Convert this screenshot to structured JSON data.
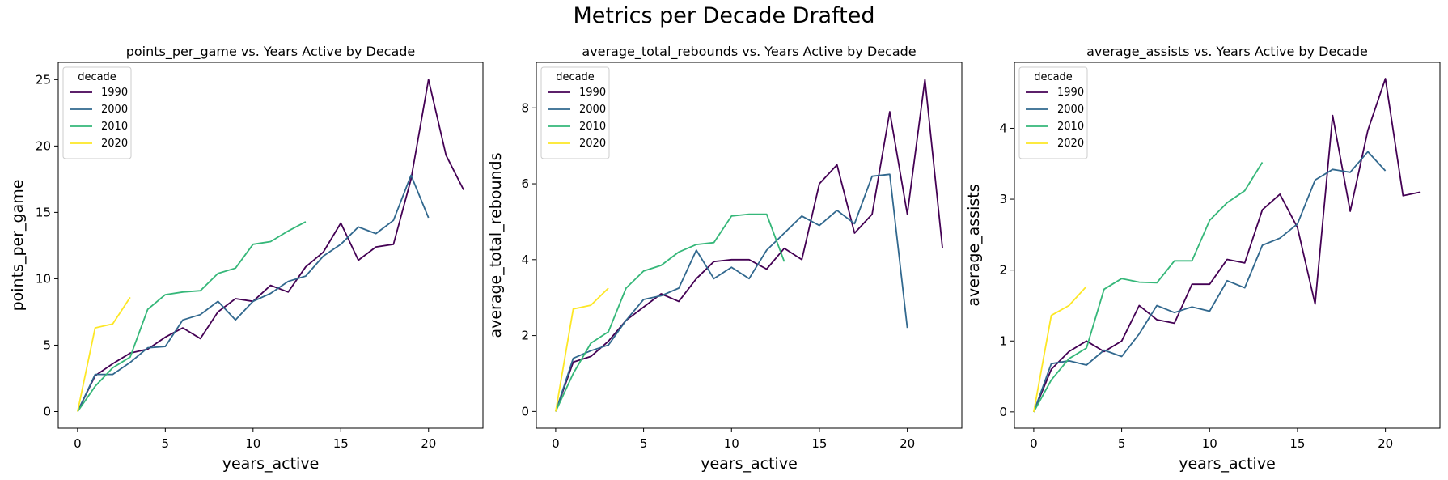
{
  "suptitle": "Metrics per Decade Drafted",
  "palette": {
    "1990": "#440154",
    "2000": "#31688e",
    "2010": "#35b779",
    "2020": "#fde725"
  },
  "chart_data": [
    {
      "type": "line",
      "title": "points_per_game vs. Years Active by Decade",
      "xlabel": "years_active",
      "ylabel": "points_per_game",
      "xlim": [
        -1.1,
        23.1
      ],
      "ylim": [
        -1.25,
        26.3
      ],
      "xticks": [
        0,
        5,
        10,
        15,
        20
      ],
      "yticks": [
        0,
        5,
        10,
        15,
        20,
        25
      ],
      "legend": {
        "title": "decade",
        "position": "top-left"
      },
      "series": [
        {
          "name": "1990",
          "x": [
            0,
            1,
            2,
            3,
            4,
            5,
            6,
            7,
            8,
            9,
            10,
            11,
            12,
            13,
            14,
            15,
            16,
            17,
            18,
            19,
            20,
            21,
            22
          ],
          "y": [
            0,
            2.7,
            3.6,
            4.4,
            4.7,
            5.6,
            6.3,
            5.5,
            7.5,
            8.5,
            8.3,
            9.5,
            9.0,
            10.9,
            12.0,
            14.2,
            11.4,
            12.4,
            12.6,
            17.5,
            25.0,
            19.3,
            16.7
          ]
        },
        {
          "name": "2000",
          "x": [
            0,
            1,
            2,
            3,
            4,
            5,
            6,
            7,
            8,
            9,
            10,
            11,
            12,
            13,
            14,
            15,
            16,
            17,
            18,
            19,
            20
          ],
          "y": [
            0,
            2.8,
            2.8,
            3.7,
            4.8,
            4.9,
            6.9,
            7.3,
            8.3,
            6.9,
            8.3,
            8.9,
            9.8,
            10.2,
            11.7,
            12.6,
            13.9,
            13.4,
            14.4,
            17.8,
            14.6
          ]
        },
        {
          "name": "2010",
          "x": [
            0,
            1,
            2,
            3,
            4,
            5,
            6,
            7,
            8,
            9,
            10,
            11,
            12,
            13
          ],
          "y": [
            0,
            1.9,
            3.3,
            4.1,
            7.7,
            8.8,
            9.0,
            9.1,
            10.4,
            10.8,
            12.6,
            12.8,
            13.6,
            14.3
          ]
        },
        {
          "name": "2020",
          "x": [
            0,
            1,
            2,
            3
          ],
          "y": [
            0,
            6.3,
            6.6,
            8.6
          ]
        }
      ]
    },
    {
      "type": "line",
      "title": "average_total_rebounds vs. Years Active by Decade",
      "xlabel": "years_active",
      "ylabel": "average_total_rebounds",
      "xlim": [
        -1.1,
        23.1
      ],
      "ylim": [
        -0.44,
        9.2
      ],
      "xticks": [
        0,
        5,
        10,
        15,
        20
      ],
      "yticks": [
        0,
        2,
        4,
        6,
        8
      ],
      "legend": {
        "title": "decade",
        "position": "top-left"
      },
      "series": [
        {
          "name": "1990",
          "x": [
            0,
            1,
            2,
            3,
            4,
            5,
            6,
            7,
            8,
            9,
            10,
            11,
            12,
            13,
            14,
            15,
            16,
            17,
            18,
            19,
            20,
            21,
            22
          ],
          "y": [
            0,
            1.3,
            1.45,
            1.85,
            2.4,
            2.75,
            3.1,
            2.9,
            3.5,
            3.95,
            4.0,
            4.0,
            3.75,
            4.3,
            4.0,
            6.0,
            6.5,
            4.7,
            5.2,
            7.9,
            5.2,
            8.75,
            4.3
          ]
        },
        {
          "name": "2000",
          "x": [
            0,
            1,
            2,
            3,
            4,
            5,
            6,
            7,
            8,
            9,
            10,
            11,
            12,
            13,
            14,
            15,
            16,
            17,
            18,
            19,
            20
          ],
          "y": [
            0,
            1.4,
            1.6,
            1.75,
            2.4,
            2.95,
            3.05,
            3.25,
            4.25,
            3.5,
            3.8,
            3.5,
            4.25,
            4.7,
            5.15,
            4.9,
            5.3,
            4.95,
            6.2,
            6.25,
            2.2
          ]
        },
        {
          "name": "2010",
          "x": [
            0,
            1,
            2,
            3,
            4,
            5,
            6,
            7,
            8,
            9,
            10,
            11,
            12,
            13
          ],
          "y": [
            0,
            1.0,
            1.8,
            2.1,
            3.25,
            3.7,
            3.85,
            4.2,
            4.4,
            4.45,
            5.15,
            5.2,
            5.2,
            3.95
          ]
        },
        {
          "name": "2020",
          "x": [
            0,
            1,
            2,
            3
          ],
          "y": [
            0,
            2.7,
            2.8,
            3.25
          ]
        }
      ]
    },
    {
      "type": "line",
      "title": "average_assists vs. Years Active by Decade",
      "xlabel": "years_active",
      "ylabel": "average_assists",
      "xlim": [
        -1.1,
        23.1
      ],
      "ylim": [
        -0.23,
        4.93
      ],
      "xticks": [
        0,
        5,
        10,
        15,
        20
      ],
      "yticks": [
        0,
        1,
        2,
        3,
        4
      ],
      "legend": {
        "title": "decade",
        "position": "top-left"
      },
      "series": [
        {
          "name": "1990",
          "x": [
            0,
            1,
            2,
            3,
            4,
            5,
            6,
            7,
            8,
            9,
            10,
            11,
            12,
            13,
            14,
            15,
            16,
            17,
            18,
            19,
            20,
            21,
            22
          ],
          "y": [
            0,
            0.6,
            0.85,
            1.0,
            0.85,
            1.0,
            1.5,
            1.3,
            1.25,
            1.8,
            1.8,
            2.15,
            2.1,
            2.85,
            3.07,
            2.6,
            1.52,
            4.18,
            2.83,
            3.97,
            4.7,
            3.05,
            3.1
          ]
        },
        {
          "name": "2000",
          "x": [
            0,
            1,
            2,
            3,
            4,
            5,
            6,
            7,
            8,
            9,
            10,
            11,
            12,
            13,
            14,
            15,
            16,
            17,
            18,
            19,
            20
          ],
          "y": [
            0,
            0.68,
            0.72,
            0.66,
            0.87,
            0.78,
            1.1,
            1.5,
            1.4,
            1.48,
            1.42,
            1.85,
            1.75,
            2.35,
            2.45,
            2.65,
            3.27,
            3.42,
            3.38,
            3.67,
            3.4
          ]
        },
        {
          "name": "2010",
          "x": [
            0,
            1,
            2,
            3,
            4,
            5,
            6,
            7,
            8,
            9,
            10,
            11,
            12,
            13
          ],
          "y": [
            0,
            0.45,
            0.75,
            0.9,
            1.73,
            1.88,
            1.83,
            1.82,
            2.13,
            2.13,
            2.7,
            2.95,
            3.12,
            3.52
          ]
        },
        {
          "name": "2020",
          "x": [
            0,
            1,
            2,
            3
          ],
          "y": [
            0,
            1.36,
            1.5,
            1.77
          ]
        }
      ]
    }
  ]
}
